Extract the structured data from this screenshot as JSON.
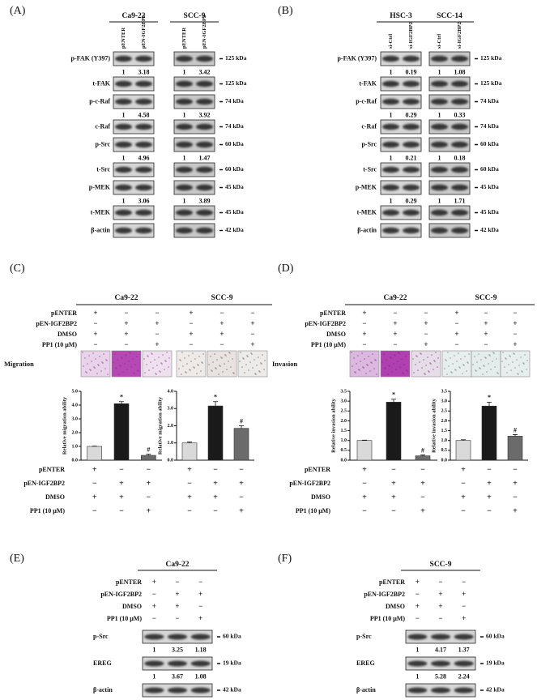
{
  "panel_a": {
    "label": "(A)",
    "groups": [
      {
        "name": "Ca9-22",
        "lanes": [
          "pENTER",
          "pEN-IGF2BP2"
        ]
      },
      {
        "name": "SCC-9",
        "lanes": [
          "pENTER",
          "pEN-IGF2BP2"
        ]
      }
    ],
    "rows": [
      {
        "protein": "p-FAK (Y397)",
        "size": "125 kDa",
        "quant": [
          [
            1,
            3.18
          ],
          [
            1,
            3.42
          ]
        ]
      },
      {
        "protein": "t-FAK",
        "size": "125 kDa"
      },
      {
        "protein": "p-c-Raf",
        "size": "74 kDa",
        "quant": [
          [
            1,
            4.58
          ],
          [
            1,
            3.92
          ]
        ]
      },
      {
        "protein": "c-Raf",
        "size": "74 kDa"
      },
      {
        "protein": "p-Src",
        "size": "60 kDa",
        "quant": [
          [
            1,
            4.96
          ],
          [
            1,
            1.47
          ]
        ]
      },
      {
        "protein": "t-Src",
        "size": "60 kDa"
      },
      {
        "protein": "p-MEK",
        "size": "45 kDa",
        "quant": [
          [
            1,
            3.06
          ],
          [
            1,
            3.89
          ]
        ]
      },
      {
        "protein": "t-MEK",
        "size": "45 kDa"
      },
      {
        "protein": "β-actin",
        "size": "42 kDa"
      }
    ]
  },
  "panel_b": {
    "label": "(B)",
    "groups": [
      {
        "name": "HSC-3",
        "lanes": [
          "si-Ctrl",
          "si-IGF2BP2"
        ]
      },
      {
        "name": "SCC-14",
        "lanes": [
          "si-Ctrl",
          "si-IGF2BP2"
        ]
      }
    ],
    "rows": [
      {
        "protein": "p-FAK (Y397)",
        "size": "125 kDa",
        "quant": [
          [
            1,
            0.19
          ],
          [
            1,
            1.08
          ]
        ]
      },
      {
        "protein": "t-FAK",
        "size": "125 kDa"
      },
      {
        "protein": "p-c-Raf",
        "size": "74 kDa",
        "quant": [
          [
            1,
            0.29
          ],
          [
            1,
            0.33
          ]
        ]
      },
      {
        "protein": "c-Raf",
        "size": "74 kDa"
      },
      {
        "protein": "p-Src",
        "size": "60 kDa",
        "quant": [
          [
            1,
            0.21
          ],
          [
            1,
            0.18
          ]
        ]
      },
      {
        "protein": "t-Src",
        "size": "60 kDa"
      },
      {
        "protein": "p-MEK",
        "size": "45 kDa",
        "quant": [
          [
            1,
            0.29
          ],
          [
            1,
            1.71
          ]
        ]
      },
      {
        "protein": "t-MEK",
        "size": "45 kDa"
      },
      {
        "protein": "β-actin",
        "size": "42 kDa"
      }
    ]
  },
  "panel_c": {
    "label": "(C)",
    "groups": [
      "Ca9-22",
      "SCC-9"
    ],
    "conditions": [
      {
        "name": "pENTER",
        "signs": [
          "+",
          "−",
          "−"
        ]
      },
      {
        "name": "pEN-IGF2BP2",
        "signs": [
          "−",
          "+",
          "+"
        ]
      },
      {
        "name": "DMSO",
        "signs": [
          "+",
          "+",
          "−"
        ]
      },
      {
        "name": "PP1 (10 μM)",
        "signs": [
          "−",
          "−",
          "+"
        ]
      }
    ],
    "image_label": "Migration"
  },
  "panel_d": {
    "label": "(D)",
    "groups": [
      "Ca9-22",
      "SCC-9"
    ],
    "conditions": [
      {
        "name": "pENTER",
        "signs": [
          "+",
          "−",
          "−"
        ]
      },
      {
        "name": "pEN-IGF2BP2",
        "signs": [
          "−",
          "+",
          "+"
        ]
      },
      {
        "name": "DMSO",
        "signs": [
          "+",
          "+",
          "−"
        ]
      },
      {
        "name": "PP1 (10 μM)",
        "signs": [
          "−",
          "−",
          "+"
        ]
      }
    ],
    "image_label": "Invasion"
  },
  "panel_e": {
    "label": "(E)",
    "groups": [
      {
        "name": "Ca9-22"
      }
    ],
    "conditions": [
      {
        "name": "pENTER",
        "signs": [
          "+",
          "−",
          "−"
        ]
      },
      {
        "name": "pEN-IGF2BP2",
        "signs": [
          "−",
          "+",
          "+"
        ]
      },
      {
        "name": "DMSO",
        "signs": [
          "+",
          "+",
          "−"
        ]
      },
      {
        "name": "PP1 (10 μM)",
        "signs": [
          "−",
          "−",
          "+"
        ]
      }
    ],
    "rows": [
      {
        "protein": "p-Src",
        "size": "60 kDa",
        "quant": [
          [
            1,
            3.25,
            1.18
          ]
        ]
      },
      {
        "protein": "EREG",
        "size": "19 kDa",
        "quant": [
          [
            1,
            3.67,
            1.08
          ]
        ]
      },
      {
        "protein": "β-actin",
        "size": "42 kDa"
      }
    ]
  },
  "panel_f": {
    "label": "(F)",
    "groups": [
      {
        "name": "SCC-9"
      }
    ],
    "conditions": [
      {
        "name": "pENTER",
        "signs": [
          "+",
          "−",
          "−"
        ]
      },
      {
        "name": "pEN-IGF2BP2",
        "signs": [
          "−",
          "+",
          "+"
        ]
      },
      {
        "name": "DMSO",
        "signs": [
          "+",
          "+",
          "−"
        ]
      },
      {
        "name": "PP1 (10 μM)",
        "signs": [
          "−",
          "−",
          "+"
        ]
      }
    ],
    "rows": [
      {
        "protein": "p-Src",
        "size": "60 kDa",
        "quant": [
          [
            1,
            4.17,
            1.37
          ]
        ]
      },
      {
        "protein": "EREG",
        "size": "19 kDa",
        "quant": [
          [
            1,
            5.28,
            2.24
          ]
        ]
      },
      {
        "protein": "β-actin",
        "size": "42 kDa"
      }
    ]
  },
  "chart_data": [
    {
      "type": "bar",
      "y_label": "Relative migration ability",
      "categories": [
        null,
        null,
        null
      ],
      "values": [
        1.0,
        4.1,
        0.35
      ],
      "errors": [
        0.02,
        0.15,
        0.08
      ],
      "value_annotations": [
        null,
        "*",
        "#"
      ],
      "colors": [
        "#d9d9d9",
        "#1a1a1a",
        "#6b6b6b"
      ],
      "ylim": [
        0,
        5
      ],
      "yticks": [
        {
          "value": 0,
          "label": "0.0"
        },
        {
          "value": 1,
          "label": "1.0"
        },
        {
          "value": 2,
          "label": "2.0"
        },
        {
          "value": 3,
          "label": "3.0"
        },
        {
          "value": 4,
          "label": "4.0"
        },
        {
          "value": 5,
          "label": "5.0"
        }
      ]
    },
    {
      "type": "bar",
      "y_label": "Relative migration ability",
      "categories": [
        null,
        null,
        null
      ],
      "values": [
        1.0,
        3.15,
        1.85
      ],
      "errors": [
        0.05,
        0.25,
        0.15
      ],
      "value_annotations": [
        null,
        "*",
        "#"
      ],
      "colors": [
        "#d9d9d9",
        "#1a1a1a",
        "#6b6b6b"
      ],
      "ylim": [
        0,
        4
      ],
      "yticks": [
        {
          "value": 0,
          "label": "0.0"
        },
        {
          "value": 1,
          "label": "1.0"
        },
        {
          "value": 2,
          "label": "2.0"
        },
        {
          "value": 3,
          "label": "3.0"
        },
        {
          "value": 4,
          "label": "4.0"
        }
      ]
    },
    {
      "type": "bar",
      "y_label": "Relative invasion ability",
      "categories": [
        null,
        null,
        null
      ],
      "values": [
        1.0,
        2.95,
        0.22
      ],
      "errors": [
        0.02,
        0.15,
        0.04
      ],
      "value_annotations": [
        null,
        "*",
        "#"
      ],
      "colors": [
        "#d9d9d9",
        "#1a1a1a",
        "#6b6b6b"
      ],
      "ylim": [
        0,
        3.5
      ],
      "yticks": [
        {
          "value": 0,
          "label": "0.0"
        },
        0.5,
        {
          "value": 1,
          "label": "1.0"
        },
        1.5,
        {
          "value": 2,
          "label": "2.0"
        },
        2.5,
        {
          "value": 3,
          "label": "3.0"
        },
        3.5
      ]
    },
    {
      "type": "bar",
      "y_label": "Relative invasion ability",
      "categories": [
        null,
        null,
        null
      ],
      "values": [
        1.0,
        2.75,
        1.22
      ],
      "errors": [
        0.04,
        0.2,
        0.08
      ],
      "value_annotations": [
        null,
        "*",
        "#"
      ],
      "colors": [
        "#d9d9d9",
        "#1a1a1a",
        "#6b6b6b"
      ],
      "ylim": [
        0,
        3.5
      ],
      "yticks": [
        {
          "value": 0,
          "label": "0.0"
        },
        0.5,
        {
          "value": 1,
          "label": "1.0"
        },
        1.5,
        {
          "value": 2,
          "label": "2.0"
        },
        2.5,
        {
          "value": 3,
          "label": "3.0"
        },
        3.5
      ]
    }
  ]
}
